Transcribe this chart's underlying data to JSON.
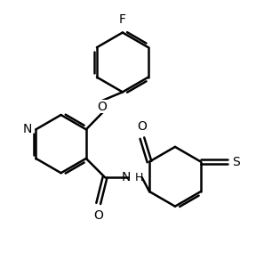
{
  "bg_color": "#ffffff",
  "line_color": "#000000",
  "bond_width": 1.8,
  "font_size": 10,
  "fig_width": 2.88,
  "fig_height": 3.11,
  "dpi": 100,
  "xlim": [
    -0.5,
    6.5
  ],
  "ylim": [
    -3.2,
    4.2
  ]
}
